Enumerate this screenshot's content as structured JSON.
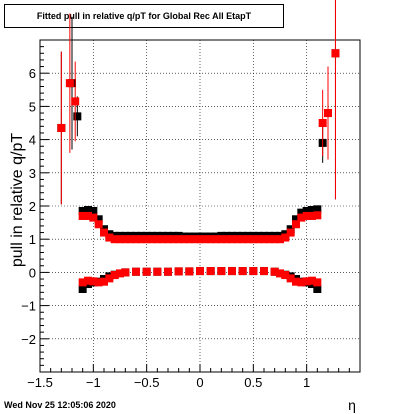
{
  "title": "Fitted pull in relative q/pT for Global Rec All EtapT",
  "footer": {
    "timestamp": "Wed Nov 25 12:05:06 2020"
  },
  "chart_data": {
    "type": "scatter",
    "title": "Fitted pull in relative q/pT for Global Rec All EtapT",
    "xlabel": "η",
    "ylabel": "pull in relative q/pT",
    "xlim": [
      -1.5,
      1.5
    ],
    "ylim": [
      -3,
      7
    ],
    "grid": true,
    "xticks": [
      -1.5,
      -1,
      -0.5,
      0,
      0.5,
      1
    ],
    "xtick_labels": [
      "−1.5",
      "−1",
      "−0.5",
      "0",
      "0.5",
      "1"
    ],
    "yticks": [
      -2,
      -1,
      0,
      1,
      2,
      3,
      4,
      5,
      6
    ],
    "ytick_labels": [
      "−2",
      "−1",
      "0",
      "1",
      "2",
      "3",
      "4",
      "5",
      "6"
    ],
    "colors": {
      "series1": "#000000",
      "series2": "#ff0000"
    },
    "series": [
      {
        "marker": "square",
        "points": [
          {
            "x": -1.3,
            "y": 4.35,
            "err": 2.3
          },
          {
            "x": -1.2,
            "y": 5.7,
            "err": 2.0
          },
          {
            "x": -1.15,
            "y": 4.7,
            "err": 0.6
          },
          {
            "x": -1.1,
            "y": 1.85,
            "err": 0.1
          },
          {
            "x": -1.05,
            "y": 1.88,
            "err": 0.08
          },
          {
            "x": -1.0,
            "y": 1.85
          },
          {
            "x": -0.95,
            "y": 1.6
          },
          {
            "x": -0.9,
            "y": 1.3
          },
          {
            "x": -0.85,
            "y": 1.15
          },
          {
            "x": -0.8,
            "y": 1.1
          },
          {
            "x": -0.75,
            "y": 1.1
          },
          {
            "x": -0.7,
            "y": 1.1
          },
          {
            "x": -0.65,
            "y": 1.1
          },
          {
            "x": -0.6,
            "y": 1.1
          },
          {
            "x": -0.55,
            "y": 1.1
          },
          {
            "x": -0.5,
            "y": 1.1
          },
          {
            "x": -0.45,
            "y": 1.1
          },
          {
            "x": -0.4,
            "y": 1.1
          },
          {
            "x": -0.35,
            "y": 1.1
          },
          {
            "x": -0.3,
            "y": 1.1
          },
          {
            "x": -0.25,
            "y": 1.1
          },
          {
            "x": -0.2,
            "y": 1.1
          },
          {
            "x": -0.15,
            "y": 1.08
          },
          {
            "x": -0.1,
            "y": 1.08
          },
          {
            "x": -0.05,
            "y": 1.08
          },
          {
            "x": 0.0,
            "y": 1.08
          },
          {
            "x": 0.05,
            "y": 1.08
          },
          {
            "x": 0.1,
            "y": 1.08
          },
          {
            "x": 0.15,
            "y": 1.08
          },
          {
            "x": 0.2,
            "y": 1.1
          },
          {
            "x": 0.25,
            "y": 1.1
          },
          {
            "x": 0.3,
            "y": 1.1
          },
          {
            "x": 0.35,
            "y": 1.1
          },
          {
            "x": 0.4,
            "y": 1.1
          },
          {
            "x": 0.45,
            "y": 1.1
          },
          {
            "x": 0.5,
            "y": 1.1
          },
          {
            "x": 0.55,
            "y": 1.1
          },
          {
            "x": 0.6,
            "y": 1.1
          },
          {
            "x": 0.65,
            "y": 1.1
          },
          {
            "x": 0.7,
            "y": 1.1
          },
          {
            "x": 0.75,
            "y": 1.1
          },
          {
            "x": 0.8,
            "y": 1.15
          },
          {
            "x": 0.85,
            "y": 1.3
          },
          {
            "x": 0.9,
            "y": 1.6
          },
          {
            "x": 0.95,
            "y": 1.8
          },
          {
            "x": 1.0,
            "y": 1.85
          },
          {
            "x": 1.05,
            "y": 1.88
          },
          {
            "x": 1.1,
            "y": 1.9,
            "err": 0.1
          },
          {
            "x": 1.15,
            "y": 3.9,
            "err": 0.6
          },
          {
            "x": 1.2,
            "y": 4.8,
            "err": 1.0
          },
          {
            "x": 1.27,
            "y": 6.6,
            "err": 4.4
          },
          {
            "x": -1.1,
            "y": -0.5
          },
          {
            "x": -1.05,
            "y": -0.35
          },
          {
            "x": -1.0,
            "y": -0.3
          },
          {
            "x": -0.95,
            "y": -0.28
          },
          {
            "x": -0.9,
            "y": -0.2
          },
          {
            "x": -0.85,
            "y": -0.12
          },
          {
            "x": -0.8,
            "y": -0.07
          },
          {
            "x": -0.7,
            "y": 0.0
          },
          {
            "x": -0.6,
            "y": 0.02
          },
          {
            "x": -0.5,
            "y": 0.02
          },
          {
            "x": -0.4,
            "y": 0.02
          },
          {
            "x": -0.3,
            "y": 0.02
          },
          {
            "x": -0.2,
            "y": 0.03
          },
          {
            "x": -0.1,
            "y": 0.03
          },
          {
            "x": 0.0,
            "y": 0.04
          },
          {
            "x": 0.1,
            "y": 0.04
          },
          {
            "x": 0.2,
            "y": 0.04
          },
          {
            "x": 0.3,
            "y": 0.04
          },
          {
            "x": 0.4,
            "y": 0.04
          },
          {
            "x": 0.5,
            "y": 0.04
          },
          {
            "x": 0.6,
            "y": 0.04
          },
          {
            "x": 0.7,
            "y": 0.02
          },
          {
            "x": 0.8,
            "y": -0.07
          },
          {
            "x": 0.85,
            "y": -0.12
          },
          {
            "x": 0.9,
            "y": -0.2
          },
          {
            "x": 0.95,
            "y": -0.28
          },
          {
            "x": 1.0,
            "y": -0.3
          },
          {
            "x": 1.05,
            "y": -0.35
          },
          {
            "x": 1.1,
            "y": -0.5
          }
        ]
      },
      {
        "marker": "square",
        "points": [
          {
            "x": -1.3,
            "y": 4.35,
            "err": 2.3
          },
          {
            "x": -1.22,
            "y": 5.7,
            "err": 2.1
          },
          {
            "x": -1.17,
            "y": 5.15,
            "err": 1.2
          },
          {
            "x": -1.1,
            "y": 1.7
          },
          {
            "x": -1.05,
            "y": 1.7
          },
          {
            "x": -1.0,
            "y": 1.65
          },
          {
            "x": -0.95,
            "y": 1.45
          },
          {
            "x": -0.9,
            "y": 1.2
          },
          {
            "x": -0.85,
            "y": 1.05
          },
          {
            "x": -0.8,
            "y": 1.0
          },
          {
            "x": -0.75,
            "y": 1.0
          },
          {
            "x": -0.7,
            "y": 1.0
          },
          {
            "x": -0.65,
            "y": 1.0
          },
          {
            "x": -0.6,
            "y": 1.0
          },
          {
            "x": -0.55,
            "y": 1.0
          },
          {
            "x": -0.5,
            "y": 1.0
          },
          {
            "x": -0.45,
            "y": 1.0
          },
          {
            "x": -0.4,
            "y": 1.0
          },
          {
            "x": -0.35,
            "y": 1.0
          },
          {
            "x": -0.3,
            "y": 1.0
          },
          {
            "x": -0.25,
            "y": 1.0
          },
          {
            "x": -0.2,
            "y": 1.0
          },
          {
            "x": -0.15,
            "y": 1.0
          },
          {
            "x": -0.1,
            "y": 1.0
          },
          {
            "x": -0.05,
            "y": 1.0
          },
          {
            "x": 0.0,
            "y": 1.0
          },
          {
            "x": 0.05,
            "y": 1.0
          },
          {
            "x": 0.1,
            "y": 1.0
          },
          {
            "x": 0.15,
            "y": 1.0
          },
          {
            "x": 0.2,
            "y": 1.0
          },
          {
            "x": 0.25,
            "y": 1.0
          },
          {
            "x": 0.3,
            "y": 1.0
          },
          {
            "x": 0.35,
            "y": 1.0
          },
          {
            "x": 0.4,
            "y": 1.0
          },
          {
            "x": 0.45,
            "y": 1.0
          },
          {
            "x": 0.5,
            "y": 1.0
          },
          {
            "x": 0.55,
            "y": 1.0
          },
          {
            "x": 0.6,
            "y": 1.0
          },
          {
            "x": 0.65,
            "y": 1.0
          },
          {
            "x": 0.7,
            "y": 1.0
          },
          {
            "x": 0.75,
            "y": 1.0
          },
          {
            "x": 0.8,
            "y": 1.05
          },
          {
            "x": 0.85,
            "y": 1.2
          },
          {
            "x": 0.9,
            "y": 1.45
          },
          {
            "x": 0.95,
            "y": 1.65
          },
          {
            "x": 1.0,
            "y": 1.7
          },
          {
            "x": 1.05,
            "y": 1.7
          },
          {
            "x": 1.1,
            "y": 1.72
          },
          {
            "x": 1.15,
            "y": 4.5,
            "err": 1.0
          },
          {
            "x": 1.2,
            "y": 4.8,
            "err": 1.4
          },
          {
            "x": 1.27,
            "y": 6.6,
            "err": 4.4
          },
          {
            "x": -1.1,
            "y": -0.3
          },
          {
            "x": -1.05,
            "y": -0.25
          },
          {
            "x": -1.0,
            "y": -0.27
          },
          {
            "x": -0.95,
            "y": -0.3
          },
          {
            "x": -0.9,
            "y": -0.28
          },
          {
            "x": -0.85,
            "y": -0.18
          },
          {
            "x": -0.8,
            "y": -0.08
          },
          {
            "x": -0.75,
            "y": -0.03
          },
          {
            "x": -0.7,
            "y": 0.0
          },
          {
            "x": -0.6,
            "y": 0.02
          },
          {
            "x": -0.5,
            "y": 0.02
          },
          {
            "x": -0.4,
            "y": 0.02
          },
          {
            "x": -0.3,
            "y": 0.02
          },
          {
            "x": -0.2,
            "y": 0.03
          },
          {
            "x": -0.1,
            "y": 0.03
          },
          {
            "x": 0.0,
            "y": 0.04
          },
          {
            "x": 0.1,
            "y": 0.04
          },
          {
            "x": 0.2,
            "y": 0.04
          },
          {
            "x": 0.3,
            "y": 0.04
          },
          {
            "x": 0.4,
            "y": 0.04
          },
          {
            "x": 0.5,
            "y": 0.04
          },
          {
            "x": 0.6,
            "y": 0.04
          },
          {
            "x": 0.7,
            "y": 0.02
          },
          {
            "x": 0.75,
            "y": -0.03
          },
          {
            "x": 0.8,
            "y": -0.08
          },
          {
            "x": 0.85,
            "y": -0.18
          },
          {
            "x": 0.9,
            "y": -0.28
          },
          {
            "x": 0.95,
            "y": -0.3
          },
          {
            "x": 1.0,
            "y": -0.27
          },
          {
            "x": 1.05,
            "y": -0.25
          },
          {
            "x": 1.1,
            "y": -0.3
          }
        ]
      }
    ]
  }
}
